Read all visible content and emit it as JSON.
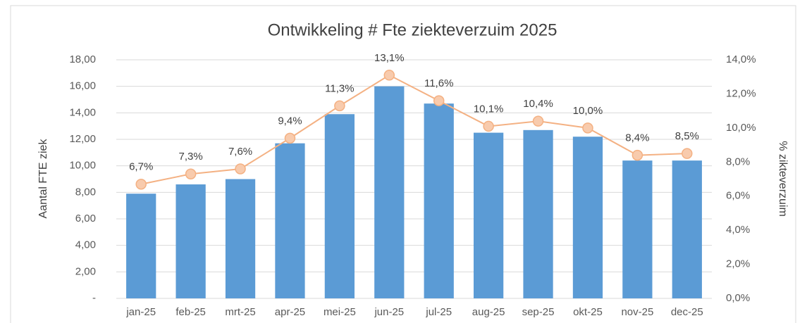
{
  "chart_data": {
    "type": "bar_line",
    "title": "Ontwikkeling # Fte ziekteverzuim 2025",
    "y_label": "Aantal FTE ziek",
    "y2_label": "% zikteverzuim",
    "categories": [
      "jan-25",
      "feb-25",
      "mrt-25",
      "apr-25",
      "mei-25",
      "jun-25",
      "jul-25",
      "aug-25",
      "sep-25",
      "okt-25",
      "nov-25",
      "dec-25"
    ],
    "series": [
      {
        "type": "bar",
        "color": "#5b9bd5",
        "axis": "y",
        "values": [
          7.9,
          8.6,
          9.0,
          11.7,
          13.9,
          16.0,
          14.7,
          12.5,
          12.7,
          12.2,
          10.4,
          10.4
        ]
      },
      {
        "type": "line",
        "color": "#f4b183",
        "axis": "y2",
        "values": [
          6.7,
          7.3,
          7.6,
          9.4,
          11.3,
          13.1,
          11.6,
          10.1,
          10.4,
          10.0,
          8.4,
          8.5
        ],
        "value_labels": [
          "6,7%",
          "7,3%",
          "7,6%",
          "9,4%",
          "11,3%",
          "13,1%",
          "11,6%",
          "10,1%",
          "10,4%",
          "10,0%",
          "8,4%",
          "8,5%"
        ]
      }
    ],
    "ylim": [
      0,
      18
    ],
    "yticks": [
      {
        "value": 0,
        "label": "-"
      },
      {
        "value": 2,
        "label": "2,00"
      },
      {
        "value": 4,
        "label": "4,00"
      },
      {
        "value": 6,
        "label": "6,00"
      },
      {
        "value": 8,
        "label": "8,00"
      },
      {
        "value": 10,
        "label": "10,00"
      },
      {
        "value": 12,
        "label": "12,00"
      },
      {
        "value": 14,
        "label": "14,00"
      },
      {
        "value": 16,
        "label": "16,00"
      },
      {
        "value": 18,
        "label": "18,00"
      }
    ],
    "y2lim": [
      0,
      14
    ],
    "y2ticks": [
      {
        "value": 0,
        "label": "0,0%"
      },
      {
        "value": 2,
        "label": "2,0%"
      },
      {
        "value": 4,
        "label": "4,0%"
      },
      {
        "value": 6,
        "label": "6,0%"
      },
      {
        "value": 8,
        "label": "8,0%"
      },
      {
        "value": 10,
        "label": "10,0%"
      },
      {
        "value": 12,
        "label": "12,0%"
      },
      {
        "value": 14,
        "label": "14,0%"
      }
    ],
    "grid": true
  }
}
